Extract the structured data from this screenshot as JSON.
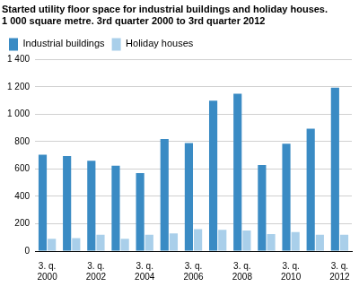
{
  "chart_data": {
    "type": "bar",
    "title": [
      "Started utility floor space for industrial buildings and holiday houses.",
      "1 000 square metre. 3rd quarter 2000 to 3rd quarter 2012"
    ],
    "categories": [
      "3. q. 2000",
      null,
      "3. q. 2002",
      null,
      "3. q. 2004",
      null,
      "3. q. 2006",
      null,
      "3. q. 2008",
      null,
      "3. q. 2010",
      null,
      "3. q. 2012"
    ],
    "series": [
      {
        "name": "Industrial buildings",
        "color": "#3a8bc4",
        "values": [
          705,
          695,
          660,
          625,
          570,
          820,
          790,
          1100,
          1150,
          630,
          785,
          895,
          1195
        ]
      },
      {
        "name": "Holiday houses",
        "color": "#a9cfea",
        "values": [
          90,
          95,
          120,
          90,
          120,
          130,
          160,
          155,
          150,
          125,
          140,
          120,
          120
        ]
      }
    ],
    "ylim": [
      0,
      1400
    ],
    "yticks": [
      0,
      200,
      400,
      600,
      800,
      {
        "value": 1000,
        "label": "1 000"
      },
      {
        "value": 1200,
        "label": "1 200"
      },
      {
        "value": 1400,
        "label": "1 400"
      }
    ],
    "grid": true,
    "legend": "top-left"
  }
}
